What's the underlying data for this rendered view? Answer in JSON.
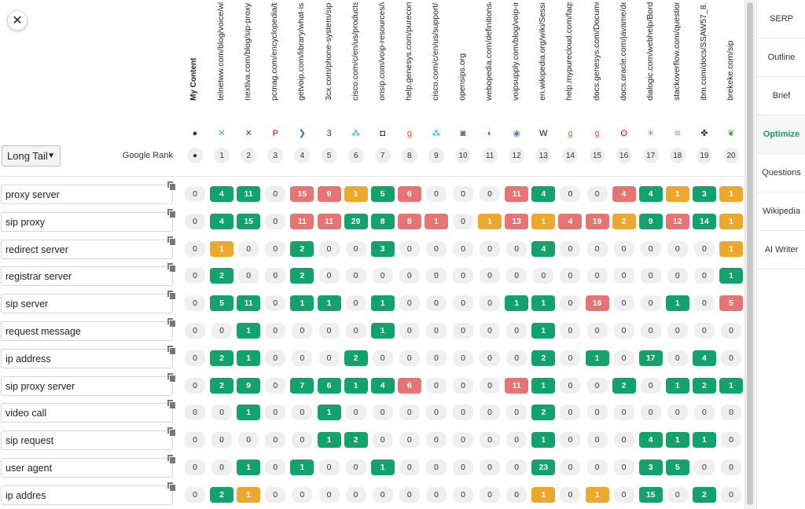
{
  "close_label": "✕",
  "filter": {
    "selected": "Long Tail"
  },
  "google_rank_label": "Google Rank",
  "columns": [
    {
      "url": "My Content",
      "rank": "●",
      "icon": "●",
      "icon_name": "user-icon",
      "color": "#333333",
      "mine": true
    },
    {
      "url": "telnetww.com/blog/voice/what-is-",
      "rank": "1",
      "icon": "✕",
      "icon_name": "telnetww-favicon-icon",
      "color": "#3fa7e0"
    },
    {
      "url": "nextiva.com/blog/sip-proxy-server",
      "rank": "2",
      "icon": "✕",
      "icon_name": "nextiva-favicon-icon",
      "color": "#1a4fa0"
    },
    {
      "url": "pcmag.com/encyclopedia/term/si",
      "rank": "3",
      "icon": "P",
      "icon_name": "pcmag-favicon-icon",
      "color": "#d0021b"
    },
    {
      "url": "getvoip.com/library/what-is-a-sip-",
      "rank": "4",
      "icon": "❯",
      "icon_name": "getvoip-favicon-icon",
      "color": "#2a6fd1"
    },
    {
      "url": "3cx.com/phone-system/sip-proxy",
      "rank": "5",
      "icon": "3",
      "icon_name": "3cx-favicon-icon",
      "color": "#333333"
    },
    {
      "url": "cisco.com/c/en/us/products/colla",
      "rank": "6",
      "icon": "⁂",
      "icon_name": "cisco-favicon-icon",
      "color": "#049fd9"
    },
    {
      "url": "onsip.com/voip-resources/voip-fu",
      "rank": "7",
      "icon": "◘",
      "icon_name": "onsip-favicon-icon",
      "color": "#222222"
    },
    {
      "url": "help.genesys.com/pureconnect/m",
      "rank": "8",
      "icon": "g",
      "icon_name": "genesys-favicon-icon",
      "color": "#ff4f1f"
    },
    {
      "url": "cisco.com/c/en/us/support/unifie",
      "rank": "9",
      "icon": "⁂",
      "icon_name": "cisco-favicon-icon",
      "color": "#049fd9"
    },
    {
      "url": "opensips.org",
      "rank": "10",
      "icon": "◙",
      "icon_name": "opensips-favicon-icon",
      "color": "#3a7d2c"
    },
    {
      "url": "webopedia.com/definitions/sip-pr",
      "rank": "11",
      "icon": "◐",
      "icon_name": "webopedia-favicon-icon",
      "color": "#e03c31"
    },
    {
      "url": "voipsupply.com/blog/voip-insider/",
      "rank": "12",
      "icon": "◉",
      "icon_name": "voipsupply-favicon-icon",
      "color": "#5a7bc0"
    },
    {
      "url": "en.wikipedia.org/wiki/Session_Init",
      "rank": "13",
      "icon": "W",
      "icon_name": "wikipedia-favicon-icon",
      "color": "#111111"
    },
    {
      "url": "help.mypurecloud.com/faqs/requi",
      "rank": "14",
      "icon": "g",
      "icon_name": "purecloud-favicon-icon",
      "color": "#ff4f1f"
    },
    {
      "url": "docs.genesys.com/Documentation",
      "rank": "15",
      "icon": "g",
      "icon_name": "genesys-favicon-icon",
      "color": "#ff4f1f"
    },
    {
      "url": "docs.oracle.com/javame/dev-tools",
      "rank": "16",
      "icon": "O",
      "icon_name": "oracle-favicon-icon",
      "color": "#e00000"
    },
    {
      "url": "dialogic.com/webhelp/BorderNet2",
      "rank": "17",
      "icon": "✳",
      "icon_name": "dialogic-favicon-icon",
      "color": "#5a8fd0"
    },
    {
      "url": "stackoverflow.com/questions/341",
      "rank": "18",
      "icon": "≋",
      "icon_name": "stackoverflow-favicon-icon",
      "color": "#f48024"
    },
    {
      "url": "ibm.com/docs/SSAW57_8.5.5/con",
      "rank": "19",
      "icon": "✤",
      "icon_name": "ibm-favicon-icon",
      "color": "#333333"
    },
    {
      "url": "brekeke.com/sip",
      "rank": "20",
      "icon": "❦",
      "icon_name": "brekeke-favicon-icon",
      "color": "#3aa53a"
    }
  ],
  "rows": [
    {
      "keyword": "proxy server",
      "cells": [
        [
          0,
          "z"
        ],
        [
          4,
          "g"
        ],
        [
          11,
          "g"
        ],
        [
          0,
          "z"
        ],
        [
          15,
          "r"
        ],
        [
          9,
          "r"
        ],
        [
          1,
          "o"
        ],
        [
          5,
          "g"
        ],
        [
          6,
          "r"
        ],
        [
          0,
          "z"
        ],
        [
          0,
          "z"
        ],
        [
          0,
          "z"
        ],
        [
          11,
          "r"
        ],
        [
          4,
          "g"
        ],
        [
          0,
          "z"
        ],
        [
          0,
          "z"
        ],
        [
          4,
          "r"
        ],
        [
          4,
          "g"
        ],
        [
          1,
          "o"
        ],
        [
          3,
          "g"
        ],
        [
          1,
          "o"
        ]
      ]
    },
    {
      "keyword": "sip proxy",
      "cells": [
        [
          0,
          "z"
        ],
        [
          4,
          "g"
        ],
        [
          15,
          "g"
        ],
        [
          0,
          "z"
        ],
        [
          11,
          "r"
        ],
        [
          11,
          "r"
        ],
        [
          29,
          "g"
        ],
        [
          8,
          "g"
        ],
        [
          8,
          "r"
        ],
        [
          1,
          "r"
        ],
        [
          0,
          "z"
        ],
        [
          1,
          "o"
        ],
        [
          13,
          "r"
        ],
        [
          1,
          "o"
        ],
        [
          4,
          "r"
        ],
        [
          19,
          "r"
        ],
        [
          2,
          "o"
        ],
        [
          9,
          "g"
        ],
        [
          12,
          "r"
        ],
        [
          14,
          "g"
        ],
        [
          1,
          "o"
        ]
      ]
    },
    {
      "keyword": "redirect server",
      "cells": [
        [
          0,
          "z"
        ],
        [
          1,
          "o"
        ],
        [
          0,
          "z"
        ],
        [
          0,
          "z"
        ],
        [
          2,
          "g"
        ],
        [
          0,
          "z"
        ],
        [
          0,
          "z"
        ],
        [
          3,
          "g"
        ],
        [
          0,
          "z"
        ],
        [
          0,
          "z"
        ],
        [
          0,
          "z"
        ],
        [
          0,
          "z"
        ],
        [
          0,
          "z"
        ],
        [
          4,
          "g"
        ],
        [
          0,
          "z"
        ],
        [
          0,
          "z"
        ],
        [
          0,
          "z"
        ],
        [
          0,
          "z"
        ],
        [
          0,
          "z"
        ],
        [
          0,
          "z"
        ],
        [
          1,
          "o"
        ]
      ]
    },
    {
      "keyword": "registrar server",
      "cells": [
        [
          0,
          "z"
        ],
        [
          2,
          "g"
        ],
        [
          0,
          "z"
        ],
        [
          0,
          "z"
        ],
        [
          2,
          "g"
        ],
        [
          0,
          "z"
        ],
        [
          0,
          "z"
        ],
        [
          0,
          "z"
        ],
        [
          0,
          "z"
        ],
        [
          0,
          "z"
        ],
        [
          0,
          "z"
        ],
        [
          0,
          "z"
        ],
        [
          0,
          "z"
        ],
        [
          0,
          "z"
        ],
        [
          0,
          "z"
        ],
        [
          0,
          "z"
        ],
        [
          0,
          "z"
        ],
        [
          0,
          "z"
        ],
        [
          0,
          "z"
        ],
        [
          0,
          "z"
        ],
        [
          1,
          "g"
        ]
      ]
    },
    {
      "keyword": "sip server",
      "cells": [
        [
          0,
          "z"
        ],
        [
          5,
          "g"
        ],
        [
          11,
          "g"
        ],
        [
          0,
          "z"
        ],
        [
          1,
          "g"
        ],
        [
          1,
          "g"
        ],
        [
          0,
          "z"
        ],
        [
          1,
          "g"
        ],
        [
          0,
          "z"
        ],
        [
          0,
          "z"
        ],
        [
          0,
          "z"
        ],
        [
          0,
          "z"
        ],
        [
          1,
          "g"
        ],
        [
          1,
          "g"
        ],
        [
          0,
          "z"
        ],
        [
          16,
          "r"
        ],
        [
          0,
          "z"
        ],
        [
          0,
          "z"
        ],
        [
          1,
          "g"
        ],
        [
          0,
          "z"
        ],
        [
          5,
          "r"
        ]
      ]
    },
    {
      "keyword": "request message",
      "cells": [
        [
          0,
          "z"
        ],
        [
          0,
          "z"
        ],
        [
          1,
          "g"
        ],
        [
          0,
          "z"
        ],
        [
          0,
          "z"
        ],
        [
          0,
          "z"
        ],
        [
          0,
          "z"
        ],
        [
          1,
          "g"
        ],
        [
          0,
          "z"
        ],
        [
          0,
          "z"
        ],
        [
          0,
          "z"
        ],
        [
          0,
          "z"
        ],
        [
          0,
          "z"
        ],
        [
          1,
          "g"
        ],
        [
          0,
          "z"
        ],
        [
          0,
          "z"
        ],
        [
          0,
          "z"
        ],
        [
          0,
          "z"
        ],
        [
          0,
          "z"
        ],
        [
          0,
          "z"
        ],
        [
          0,
          "z"
        ]
      ]
    },
    {
      "keyword": "ip address",
      "cells": [
        [
          0,
          "z"
        ],
        [
          2,
          "g"
        ],
        [
          1,
          "g"
        ],
        [
          0,
          "z"
        ],
        [
          0,
          "z"
        ],
        [
          0,
          "z"
        ],
        [
          2,
          "g"
        ],
        [
          0,
          "z"
        ],
        [
          0,
          "z"
        ],
        [
          0,
          "z"
        ],
        [
          0,
          "z"
        ],
        [
          0,
          "z"
        ],
        [
          0,
          "z"
        ],
        [
          2,
          "g"
        ],
        [
          0,
          "z"
        ],
        [
          1,
          "g"
        ],
        [
          0,
          "z"
        ],
        [
          17,
          "g"
        ],
        [
          0,
          "z"
        ],
        [
          4,
          "g"
        ],
        [
          0,
          "z"
        ]
      ]
    },
    {
      "keyword": "sip proxy server",
      "cells": [
        [
          0,
          "z"
        ],
        [
          2,
          "g"
        ],
        [
          9,
          "g"
        ],
        [
          0,
          "z"
        ],
        [
          7,
          "g"
        ],
        [
          6,
          "g"
        ],
        [
          1,
          "g"
        ],
        [
          4,
          "g"
        ],
        [
          6,
          "r"
        ],
        [
          0,
          "z"
        ],
        [
          0,
          "z"
        ],
        [
          0,
          "z"
        ],
        [
          11,
          "r"
        ],
        [
          1,
          "g"
        ],
        [
          0,
          "z"
        ],
        [
          0,
          "z"
        ],
        [
          2,
          "g"
        ],
        [
          0,
          "z"
        ],
        [
          1,
          "g"
        ],
        [
          2,
          "g"
        ],
        [
          1,
          "g"
        ]
      ]
    },
    {
      "keyword": "video call",
      "cells": [
        [
          0,
          "z"
        ],
        [
          0,
          "z"
        ],
        [
          1,
          "g"
        ],
        [
          0,
          "z"
        ],
        [
          0,
          "z"
        ],
        [
          1,
          "g"
        ],
        [
          0,
          "z"
        ],
        [
          0,
          "z"
        ],
        [
          0,
          "z"
        ],
        [
          0,
          "z"
        ],
        [
          0,
          "z"
        ],
        [
          0,
          "z"
        ],
        [
          0,
          "z"
        ],
        [
          2,
          "g"
        ],
        [
          0,
          "z"
        ],
        [
          0,
          "z"
        ],
        [
          0,
          "z"
        ],
        [
          0,
          "z"
        ],
        [
          0,
          "z"
        ],
        [
          0,
          "z"
        ],
        [
          0,
          "z"
        ]
      ]
    },
    {
      "keyword": "sip request",
      "cells": [
        [
          0,
          "z"
        ],
        [
          0,
          "z"
        ],
        [
          0,
          "z"
        ],
        [
          0,
          "z"
        ],
        [
          0,
          "z"
        ],
        [
          1,
          "g"
        ],
        [
          2,
          "g"
        ],
        [
          0,
          "z"
        ],
        [
          0,
          "z"
        ],
        [
          0,
          "z"
        ],
        [
          0,
          "z"
        ],
        [
          0,
          "z"
        ],
        [
          0,
          "z"
        ],
        [
          1,
          "g"
        ],
        [
          0,
          "z"
        ],
        [
          0,
          "z"
        ],
        [
          0,
          "z"
        ],
        [
          4,
          "g"
        ],
        [
          1,
          "g"
        ],
        [
          1,
          "g"
        ],
        [
          0,
          "z"
        ]
      ]
    },
    {
      "keyword": "user agent",
      "cells": [
        [
          0,
          "z"
        ],
        [
          0,
          "z"
        ],
        [
          1,
          "g"
        ],
        [
          0,
          "z"
        ],
        [
          1,
          "g"
        ],
        [
          0,
          "z"
        ],
        [
          0,
          "z"
        ],
        [
          1,
          "g"
        ],
        [
          0,
          "z"
        ],
        [
          0,
          "z"
        ],
        [
          0,
          "z"
        ],
        [
          0,
          "z"
        ],
        [
          0,
          "z"
        ],
        [
          23,
          "g"
        ],
        [
          0,
          "z"
        ],
        [
          0,
          "z"
        ],
        [
          0,
          "z"
        ],
        [
          3,
          "g"
        ],
        [
          5,
          "g"
        ],
        [
          0,
          "z"
        ],
        [
          0,
          "z"
        ]
      ]
    },
    {
      "keyword": "ip addres",
      "cells": [
        [
          0,
          "z"
        ],
        [
          2,
          "g"
        ],
        [
          1,
          "o"
        ],
        [
          0,
          "z"
        ],
        [
          0,
          "z"
        ],
        [
          0,
          "z"
        ],
        [
          0,
          "z"
        ],
        [
          0,
          "z"
        ],
        [
          0,
          "z"
        ],
        [
          0,
          "z"
        ],
        [
          0,
          "z"
        ],
        [
          0,
          "z"
        ],
        [
          0,
          "z"
        ],
        [
          1,
          "o"
        ],
        [
          0,
          "z"
        ],
        [
          1,
          "o"
        ],
        [
          0,
          "z"
        ],
        [
          15,
          "g"
        ],
        [
          0,
          "z"
        ],
        [
          2,
          "g"
        ],
        [
          0,
          "z"
        ]
      ]
    }
  ],
  "nav": [
    {
      "label": "SERP",
      "active": false
    },
    {
      "label": "Outline",
      "active": false
    },
    {
      "label": "Brief",
      "active": false
    },
    {
      "label": "Optimize",
      "active": true
    },
    {
      "label": "Questions",
      "active": false
    },
    {
      "label": "Wikipedia",
      "active": false
    },
    {
      "label": "AI Writer",
      "active": false
    }
  ],
  "colors": {
    "green": "#12a26b",
    "red": "#e87373",
    "orange": "#eba82a",
    "accent": "#12a26b"
  }
}
